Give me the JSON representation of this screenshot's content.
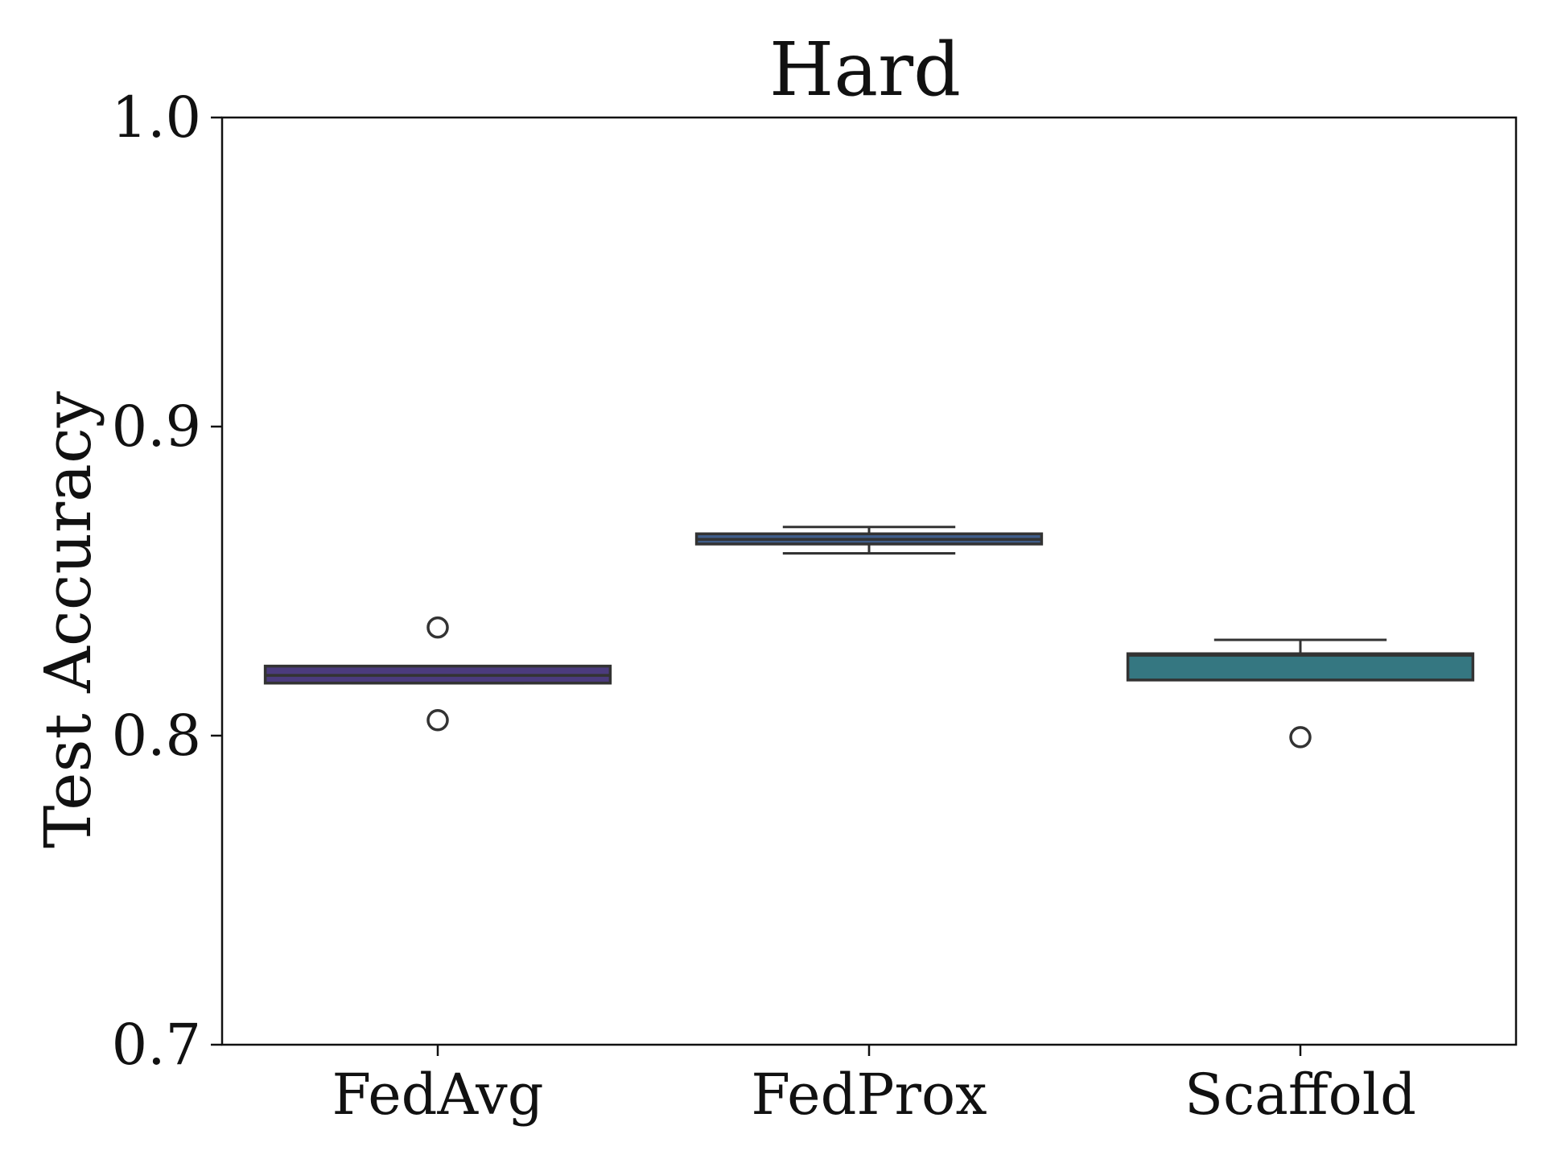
{
  "chart_data": {
    "type": "box",
    "title": "Hard",
    "xlabel": "",
    "ylabel": "Test Accuracy",
    "ylim": [
      0.7,
      1.0
    ],
    "yticks": [
      "0.7",
      "0.8",
      "0.9",
      "1.0"
    ],
    "categories": [
      "FedAvg",
      "FedProx",
      "Scaffold"
    ],
    "boxes": [
      {
        "category": "FedAvg",
        "color": "#4b3b7d",
        "whisker_low": 0.817,
        "q1": 0.817,
        "median": 0.8195,
        "q3": 0.8225,
        "whisker_high": 0.8225,
        "outliers": [
          0.835,
          0.805
        ]
      },
      {
        "category": "FedProx",
        "color": "#3f5d8a",
        "whisker_low": 0.859,
        "q1": 0.862,
        "median": 0.8635,
        "q3": 0.8653,
        "whisker_high": 0.8675,
        "outliers": []
      },
      {
        "category": "Scaffold",
        "color": "#357781",
        "whisker_low": 0.818,
        "q1": 0.818,
        "median": 0.826,
        "q3": 0.8265,
        "whisker_high": 0.831,
        "outliers": [
          0.7995
        ]
      }
    ],
    "grid": false,
    "legend": "none"
  }
}
